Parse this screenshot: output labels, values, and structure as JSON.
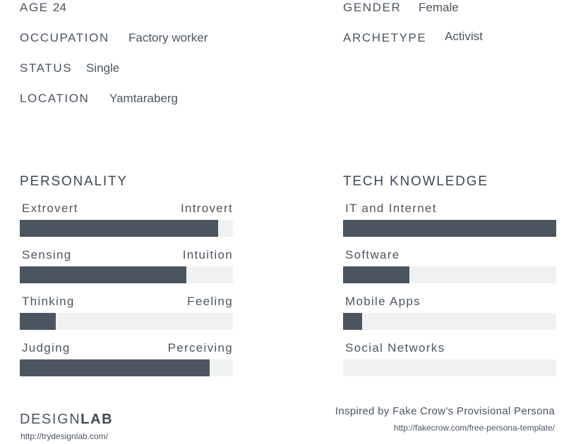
{
  "profile": {
    "age": {
      "label": "AGE",
      "value": "24"
    },
    "occupation": {
      "label": "OCCUPATION",
      "value": "Factory worker"
    },
    "status": {
      "label": "STATUS",
      "value": "Single"
    },
    "location": {
      "label": "LOCATION",
      "value": "Yamtaraberg"
    },
    "gender": {
      "label": "GENDER",
      "value": "Female"
    },
    "archetype": {
      "label": "ARCHETYPE",
      "value": "Activist"
    }
  },
  "personality": {
    "title": "PERSONALITY",
    "bars": [
      {
        "left": "Extrovert",
        "right": "Introvert",
        "level": 0.93
      },
      {
        "left": "Sensing",
        "right": "Intuition",
        "level": 0.78
      },
      {
        "left": "Thinking",
        "right": "Feeling",
        "level": 0.17
      },
      {
        "left": "Judging",
        "right": "Perceiving",
        "level": 0.89
      }
    ]
  },
  "tech": {
    "title": "TECH KNOWLEDGE",
    "bars": [
      {
        "label": "IT and Internet",
        "level": 1.0
      },
      {
        "label": "Software",
        "level": 0.31
      },
      {
        "label": "Mobile Apps",
        "level": 0.09
      },
      {
        "label": "Social Networks",
        "level": 0.0
      }
    ]
  },
  "footer": {
    "logo_light": "DESIGN",
    "logo_bold": "LAB",
    "logo_url": "http://trydesignlab.com/",
    "credit": "Inspired by Fake Crow’s Provisional Persona",
    "credit_url": "http://fakecrow.com/free-persona-template/"
  },
  "colors": {
    "bar_fill": "#4b5560",
    "bar_track": "#f0f1f1",
    "text": "#4b5560"
  }
}
